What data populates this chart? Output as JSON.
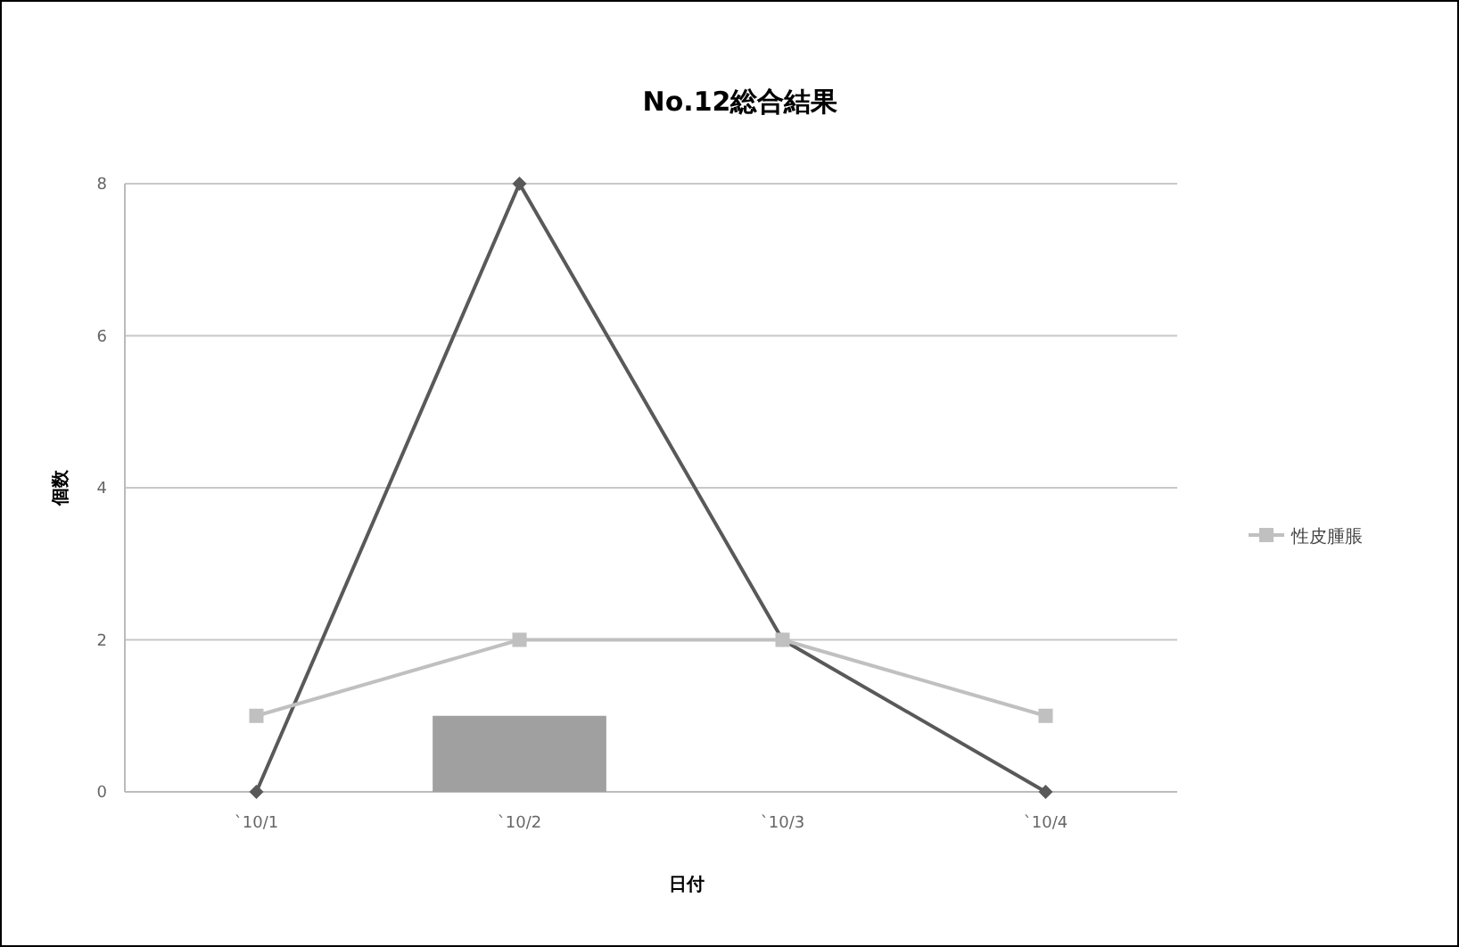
{
  "chart_data": {
    "type": "line",
    "title": "No.12総合結果",
    "xlabel": "日付",
    "ylabel": "個数",
    "categories": [
      "`10/1",
      "`10/2",
      "`10/3",
      "`10/4"
    ],
    "ylim": [
      0,
      8
    ],
    "yticks": [
      0,
      2,
      4,
      6,
      8
    ],
    "grid": "y",
    "legend": "right",
    "series": [
      {
        "type": "bar",
        "color": "#a0a0a0",
        "values": [
          null,
          1,
          null,
          null
        ]
      },
      {
        "color": "#595959",
        "marker": "diamond",
        "values": [
          0,
          8,
          2,
          0
        ]
      },
      {
        "name": "性皮腫脹",
        "color": "#c0c0c0",
        "marker": "square",
        "values": [
          1,
          2,
          2,
          1
        ]
      }
    ]
  }
}
